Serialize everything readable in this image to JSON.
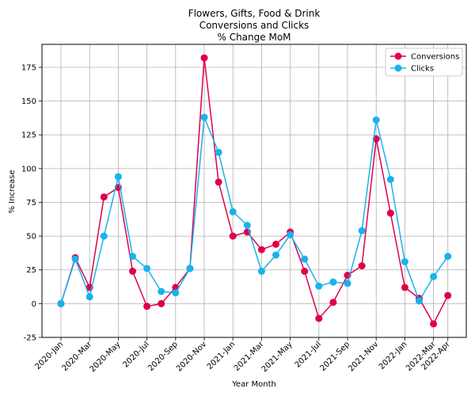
{
  "chart_data": {
    "type": "line",
    "title": [
      "Flowers, Gifts, Food & Drink",
      "Conversions and Clicks",
      "% Change MoM"
    ],
    "xlabel": "Year Month",
    "ylabel": "% Increase",
    "ylim": [
      -25,
      192
    ],
    "yticks": [
      -25,
      0,
      25,
      50,
      75,
      100,
      125,
      150,
      175
    ],
    "xtick_labels": [
      "2020-Jan",
      "2020-Mar",
      "2020-May",
      "2020-Jul",
      "2020-Sep",
      "2020-Nov",
      "2021-Jan",
      "2021-Mar",
      "2021-May",
      "2021-Jul",
      "2021-Sep",
      "2021-Nov",
      "2022-Jan",
      "2022-Mar",
      "2022-Apr"
    ],
    "grid": true,
    "legend_position": "top-right",
    "x": [
      "2020-Jan",
      "2020-Feb",
      "2020-Mar",
      "2020-Apr",
      "2020-May",
      "2020-Jun",
      "2020-Jul",
      "2020-Aug",
      "2020-Sep",
      "2020-Oct",
      "2020-Nov",
      "2020-Dec",
      "2021-Jan",
      "2021-Feb",
      "2021-Mar",
      "2021-Apr",
      "2021-May",
      "2021-Jun",
      "2021-Jul",
      "2021-Aug",
      "2021-Sep",
      "2021-Oct",
      "2021-Nov",
      "2021-Dec",
      "2022-Jan",
      "2022-Feb",
      "2022-Mar",
      "2022-Apr"
    ],
    "series": [
      {
        "name": "Conversions",
        "color": "#e0004a",
        "values": [
          0,
          34,
          12,
          79,
          86,
          24,
          -2,
          0,
          12,
          26,
          182,
          90,
          50,
          53,
          40,
          44,
          53,
          24,
          -11,
          1,
          21,
          28,
          122,
          67,
          12,
          4,
          -15,
          6
        ]
      },
      {
        "name": "Clicks",
        "color": "#1ab2ec",
        "values": [
          0,
          33,
          5,
          50,
          94,
          35,
          26,
          9,
          8,
          26,
          138,
          112,
          68,
          58,
          24,
          36,
          51,
          33,
          13,
          16,
          15,
          54,
          136,
          92,
          31,
          2,
          20,
          35
        ]
      }
    ]
  }
}
